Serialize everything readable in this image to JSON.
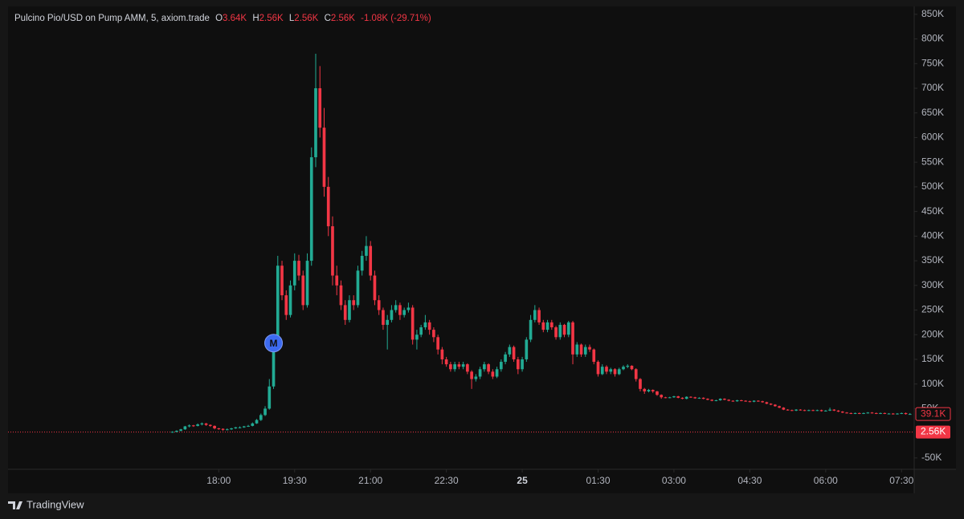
{
  "chart_data": {
    "type": "candlestick",
    "title": "Pulcino Pio/USD on Pump AMM, 5, axiom.trade",
    "legend": {
      "open_label": "O",
      "open": "3.64K",
      "high_label": "H",
      "high": "2.56K",
      "low_label": "L",
      "low": "2.56K",
      "close_label": "C",
      "close": "2.56K",
      "change": "-1.08K (-29.71%)"
    },
    "up_color": "#22ab94",
    "down_color": "#f23645",
    "xlim": [
      830,
      1905
    ],
    "xticks": [
      {
        "value": 1080,
        "label": "18:00"
      },
      {
        "value": 1170,
        "label": "19:30"
      },
      {
        "value": 1260,
        "label": "21:00"
      },
      {
        "value": 1350,
        "label": "22:30"
      },
      {
        "value": 1440,
        "label": "25"
      },
      {
        "value": 1530,
        "label": "01:30"
      },
      {
        "value": 1620,
        "label": "03:00"
      },
      {
        "value": 1710,
        "label": "04:30"
      },
      {
        "value": 1800,
        "label": "06:00"
      },
      {
        "value": 1890,
        "label": "07:30"
      }
    ],
    "ylim": [
      -73,
      866
    ],
    "yticks": [
      {
        "value": 850,
        "label": "850K"
      },
      {
        "value": 800,
        "label": "800K"
      },
      {
        "value": 750,
        "label": "750K"
      },
      {
        "value": 700,
        "label": "700K"
      },
      {
        "value": 650,
        "label": "650K"
      },
      {
        "value": 600,
        "label": "600K"
      },
      {
        "value": 550,
        "label": "550K"
      },
      {
        "value": 500,
        "label": "500K"
      },
      {
        "value": 450,
        "label": "450K"
      },
      {
        "value": 400,
        "label": "400K"
      },
      {
        "value": 350,
        "label": "350K"
      },
      {
        "value": 300,
        "label": "300K"
      },
      {
        "value": 250,
        "label": "250K"
      },
      {
        "value": 200,
        "label": "200K"
      },
      {
        "value": 150,
        "label": "150K"
      },
      {
        "value": 100,
        "label": "100K"
      },
      {
        "value": 50,
        "label": "50K"
      },
      {
        "value": -50,
        "label": "-50K"
      }
    ],
    "last_value": {
      "value": 39.1,
      "label": "39.1K"
    },
    "price_line": {
      "value": 2.56,
      "label": "2.56K"
    },
    "marker": {
      "label": "M",
      "x": 1145,
      "y": 183
    },
    "ohlc": [
      [
        1025,
        2,
        4,
        1,
        3
      ],
      [
        1030,
        3,
        6,
        2,
        5
      ],
      [
        1035,
        5,
        9,
        4,
        8
      ],
      [
        1040,
        8,
        15,
        7,
        14
      ],
      [
        1045,
        14,
        18,
        12,
        16
      ],
      [
        1050,
        16,
        17,
        13,
        15
      ],
      [
        1055,
        15,
        20,
        14,
        18
      ],
      [
        1060,
        18,
        22,
        16,
        20
      ],
      [
        1065,
        20,
        21,
        15,
        17
      ],
      [
        1070,
        17,
        18,
        13,
        15
      ],
      [
        1075,
        15,
        16,
        8,
        10
      ],
      [
        1080,
        10,
        11,
        7,
        9
      ],
      [
        1085,
        9,
        10,
        5,
        7
      ],
      [
        1090,
        7,
        10,
        6,
        8
      ],
      [
        1095,
        8,
        11,
        7,
        10
      ],
      [
        1100,
        10,
        13,
        9,
        12
      ],
      [
        1105,
        12,
        14,
        10,
        12
      ],
      [
        1110,
        12,
        15,
        11,
        14
      ],
      [
        1115,
        14,
        17,
        13,
        15
      ],
      [
        1120,
        15,
        22,
        14,
        20
      ],
      [
        1125,
        20,
        29,
        19,
        27
      ],
      [
        1130,
        27,
        40,
        25,
        37
      ],
      [
        1135,
        37,
        55,
        35,
        50
      ],
      [
        1140,
        50,
        110,
        48,
        95
      ],
      [
        1145,
        95,
        200,
        90,
        180
      ],
      [
        1150,
        180,
        360,
        170,
        340
      ],
      [
        1155,
        340,
        350,
        270,
        280
      ],
      [
        1160,
        280,
        290,
        230,
        240
      ],
      [
        1165,
        240,
        310,
        235,
        300
      ],
      [
        1170,
        300,
        365,
        290,
        350
      ],
      [
        1175,
        350,
        362,
        310,
        320
      ],
      [
        1180,
        320,
        330,
        250,
        260
      ],
      [
        1185,
        260,
        365,
        255,
        350
      ],
      [
        1190,
        350,
        580,
        340,
        560
      ],
      [
        1195,
        560,
        770,
        540,
        700
      ],
      [
        1200,
        700,
        745,
        600,
        620
      ],
      [
        1205,
        620,
        660,
        480,
        500
      ],
      [
        1210,
        500,
        520,
        400,
        420
      ],
      [
        1215,
        420,
        440,
        300,
        320
      ],
      [
        1220,
        320,
        340,
        280,
        300
      ],
      [
        1225,
        300,
        310,
        250,
        260
      ],
      [
        1230,
        260,
        270,
        220,
        230
      ],
      [
        1235,
        230,
        280,
        225,
        270
      ],
      [
        1240,
        270,
        280,
        250,
        260
      ],
      [
        1245,
        260,
        340,
        255,
        330
      ],
      [
        1250,
        330,
        370,
        320,
        360
      ],
      [
        1255,
        360,
        400,
        350,
        380
      ],
      [
        1260,
        380,
        390,
        310,
        320
      ],
      [
        1265,
        320,
        330,
        260,
        270
      ],
      [
        1270,
        270,
        280,
        240,
        250
      ],
      [
        1275,
        250,
        255,
        210,
        220
      ],
      [
        1280,
        220,
        240,
        170,
        230
      ],
      [
        1285,
        230,
        260,
        225,
        250
      ],
      [
        1290,
        250,
        270,
        245,
        260
      ],
      [
        1295,
        260,
        265,
        230,
        240
      ],
      [
        1300,
        240,
        255,
        235,
        250
      ],
      [
        1305,
        250,
        265,
        245,
        255
      ],
      [
        1310,
        255,
        260,
        180,
        190
      ],
      [
        1315,
        190,
        210,
        170,
        200
      ],
      [
        1320,
        200,
        220,
        195,
        215
      ],
      [
        1325,
        215,
        240,
        210,
        225
      ],
      [
        1330,
        225,
        230,
        200,
        210
      ],
      [
        1335,
        210,
        215,
        185,
        195
      ],
      [
        1340,
        195,
        200,
        160,
        170
      ],
      [
        1345,
        170,
        175,
        140,
        150
      ],
      [
        1350,
        150,
        155,
        135,
        140
      ],
      [
        1355,
        140,
        145,
        125,
        130
      ],
      [
        1360,
        130,
        145,
        125,
        140
      ],
      [
        1365,
        140,
        145,
        130,
        135
      ],
      [
        1370,
        135,
        145,
        130,
        140
      ],
      [
        1375,
        140,
        142,
        120,
        125
      ],
      [
        1380,
        125,
        128,
        90,
        110
      ],
      [
        1385,
        110,
        120,
        105,
        115
      ],
      [
        1390,
        115,
        135,
        110,
        130
      ],
      [
        1395,
        130,
        145,
        125,
        140
      ],
      [
        1400,
        140,
        142,
        120,
        125
      ],
      [
        1405,
        125,
        130,
        110,
        115
      ],
      [
        1410,
        115,
        135,
        112,
        130
      ],
      [
        1415,
        130,
        150,
        125,
        145
      ],
      [
        1420,
        145,
        165,
        140,
        160
      ],
      [
        1425,
        160,
        180,
        155,
        175
      ],
      [
        1430,
        175,
        178,
        145,
        150
      ],
      [
        1435,
        150,
        155,
        120,
        130
      ],
      [
        1440,
        130,
        155,
        125,
        150
      ],
      [
        1445,
        150,
        195,
        145,
        190
      ],
      [
        1450,
        190,
        240,
        185,
        230
      ],
      [
        1455,
        230,
        260,
        225,
        250
      ],
      [
        1460,
        250,
        255,
        220,
        225
      ],
      [
        1465,
        225,
        230,
        205,
        210
      ],
      [
        1470,
        210,
        230,
        205,
        225
      ],
      [
        1475,
        225,
        230,
        210,
        215
      ],
      [
        1480,
        215,
        218,
        190,
        195
      ],
      [
        1485,
        195,
        225,
        190,
        220
      ],
      [
        1490,
        220,
        222,
        195,
        200
      ],
      [
        1495,
        200,
        228,
        195,
        225
      ],
      [
        1500,
        225,
        228,
        140,
        160
      ],
      [
        1505,
        160,
        185,
        155,
        180
      ],
      [
        1510,
        180,
        182,
        155,
        160
      ],
      [
        1515,
        160,
        180,
        155,
        175
      ],
      [
        1520,
        175,
        180,
        165,
        170
      ],
      [
        1525,
        170,
        172,
        140,
        145
      ],
      [
        1530,
        145,
        148,
        115,
        120
      ],
      [
        1535,
        120,
        140,
        118,
        135
      ],
      [
        1540,
        135,
        138,
        120,
        125
      ],
      [
        1545,
        125,
        133,
        120,
        130
      ],
      [
        1550,
        130,
        132,
        115,
        120
      ],
      [
        1555,
        120,
        133,
        118,
        130
      ],
      [
        1560,
        130,
        138,
        128,
        135
      ],
      [
        1565,
        135,
        140,
        132,
        137
      ],
      [
        1570,
        137,
        138,
        128,
        130
      ],
      [
        1575,
        130,
        132,
        105,
        110
      ],
      [
        1580,
        110,
        112,
        85,
        90
      ],
      [
        1585,
        90,
        92,
        80,
        85
      ],
      [
        1590,
        85,
        90,
        83,
        88
      ],
      [
        1595,
        88,
        89,
        82,
        85
      ],
      [
        1600,
        85,
        86,
        76,
        78
      ],
      [
        1605,
        78,
        79,
        70,
        73
      ],
      [
        1610,
        73,
        74,
        71,
        72
      ],
      [
        1615,
        72,
        74,
        71,
        73
      ],
      [
        1620,
        73,
        76,
        72,
        75
      ],
      [
        1625,
        75,
        76,
        71,
        72
      ],
      [
        1630,
        72,
        73,
        69,
        70
      ],
      [
        1635,
        70,
        75,
        69,
        74
      ],
      [
        1640,
        74,
        75,
        72,
        73
      ],
      [
        1645,
        73,
        74,
        70,
        71
      ],
      [
        1650,
        71,
        73,
        70,
        72
      ],
      [
        1655,
        72,
        73,
        69,
        70
      ],
      [
        1660,
        70,
        71,
        67,
        68
      ],
      [
        1665,
        68,
        69,
        65,
        66
      ],
      [
        1670,
        66,
        68,
        65,
        67
      ],
      [
        1675,
        67,
        71,
        66,
        70
      ],
      [
        1680,
        70,
        71,
        67,
        68
      ],
      [
        1685,
        68,
        69,
        65,
        66
      ],
      [
        1690,
        66,
        67,
        64,
        65
      ],
      [
        1695,
        65,
        68,
        64,
        67
      ],
      [
        1700,
        67,
        68,
        65,
        66
      ],
      [
        1705,
        66,
        67,
        64,
        65
      ],
      [
        1710,
        65,
        66,
        63,
        64
      ],
      [
        1715,
        64,
        67,
        63,
        66
      ],
      [
        1720,
        66,
        67,
        64,
        65
      ],
      [
        1725,
        65,
        66,
        62,
        63
      ],
      [
        1730,
        63,
        64,
        59,
        60
      ],
      [
        1735,
        60,
        61,
        57,
        58
      ],
      [
        1740,
        58,
        59,
        54,
        55
      ],
      [
        1745,
        55,
        56,
        51,
        52
      ],
      [
        1750,
        52,
        53,
        47,
        48
      ],
      [
        1755,
        48,
        49,
        46,
        47
      ],
      [
        1760,
        47,
        48,
        45,
        46
      ],
      [
        1765,
        46,
        49,
        45,
        48
      ],
      [
        1770,
        48,
        49,
        46,
        47
      ],
      [
        1775,
        47,
        48,
        45,
        46
      ],
      [
        1780,
        46,
        48,
        45,
        47
      ],
      [
        1785,
        47,
        48,
        45,
        46
      ],
      [
        1790,
        46,
        48,
        45,
        47
      ],
      [
        1795,
        47,
        48,
        44,
        45
      ],
      [
        1800,
        45,
        47,
        44,
        46
      ],
      [
        1805,
        46,
        52,
        45,
        48
      ],
      [
        1810,
        48,
        49,
        45,
        46
      ],
      [
        1815,
        46,
        47,
        43,
        44
      ],
      [
        1820,
        44,
        45,
        41,
        42
      ],
      [
        1825,
        42,
        43,
        40,
        41
      ],
      [
        1830,
        41,
        42,
        39,
        40
      ],
      [
        1835,
        40,
        42,
        39,
        41
      ],
      [
        1840,
        41,
        42,
        39,
        40
      ],
      [
        1845,
        40,
        42,
        39,
        41
      ],
      [
        1850,
        41,
        43,
        40,
        42
      ],
      [
        1855,
        42,
        43,
        40,
        41
      ],
      [
        1860,
        41,
        42,
        39,
        40
      ],
      [
        1865,
        40,
        42,
        39,
        41
      ],
      [
        1870,
        41,
        42,
        39,
        40
      ],
      [
        1875,
        40,
        41,
        39,
        40
      ],
      [
        1880,
        40,
        41,
        38,
        39
      ],
      [
        1885,
        39,
        41,
        38,
        40
      ],
      [
        1890,
        40,
        42,
        39,
        41
      ],
      [
        1895,
        41,
        42,
        38,
        39
      ],
      [
        1900,
        39,
        41,
        38,
        39.1
      ]
    ]
  },
  "footer": {
    "brand": "TradingView"
  }
}
